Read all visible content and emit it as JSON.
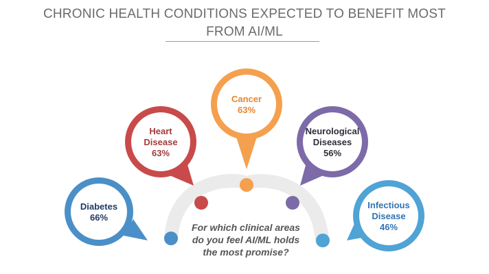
{
  "title": {
    "line1": "CHRONIC HEALTH CONDITIONS EXPECTED TO BENEFIT MOST",
    "line2": "FROM AI/ML"
  },
  "question": {
    "line1": "For which clinical areas",
    "line2": "do you feel AI/ML holds",
    "line3": "the most promise?"
  },
  "conditions": [
    {
      "name_lines": [
        "Diabetes"
      ],
      "percent": "66%",
      "value": 66,
      "color": "#4a8fc7",
      "text_color": "#1f3a66"
    },
    {
      "name_lines": [
        "Heart",
        "Disease"
      ],
      "percent": "63%",
      "value": 63,
      "color": "#c84a4a",
      "text_color": "#a53a3a"
    },
    {
      "name_lines": [
        "Cancer"
      ],
      "percent": "63%",
      "value": 63,
      "color": "#f4a04e",
      "text_color": "#e8852e"
    },
    {
      "name_lines": [
        "Neurological",
        "Diseases"
      ],
      "percent": "56%",
      "value": 56,
      "color": "#7d6aa8",
      "text_color": "#2e2e3a"
    },
    {
      "name_lines": [
        "Infectious",
        "Disease"
      ],
      "percent": "46%",
      "value": 46,
      "color": "#4fa3d5",
      "text_color": "#2f74b4"
    }
  ],
  "colors": {
    "arc": "#ebebeb",
    "title": "#6b6b6b",
    "question": "#555555"
  }
}
